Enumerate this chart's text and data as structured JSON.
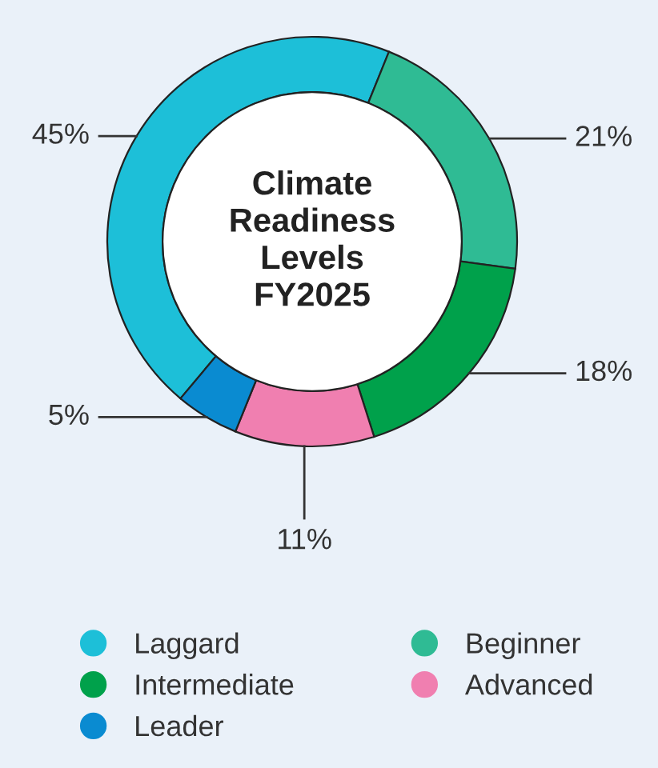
{
  "chart_data": {
    "type": "donut",
    "title": "Climate\nReadiness\nLevels\nFY2025",
    "categories": [
      "Laggard",
      "Beginner",
      "Intermediate",
      "Advanced",
      "Leader"
    ],
    "values": [
      45,
      21,
      18,
      11,
      5
    ],
    "colors": [
      "#1dbfd8",
      "#2fbb94",
      "#00a14b",
      "#f07fb0",
      "#0a8bd1"
    ],
    "value_labels": [
      "45%",
      "21%",
      "18%",
      "11%",
      "5%"
    ],
    "legend": "bottom"
  }
}
